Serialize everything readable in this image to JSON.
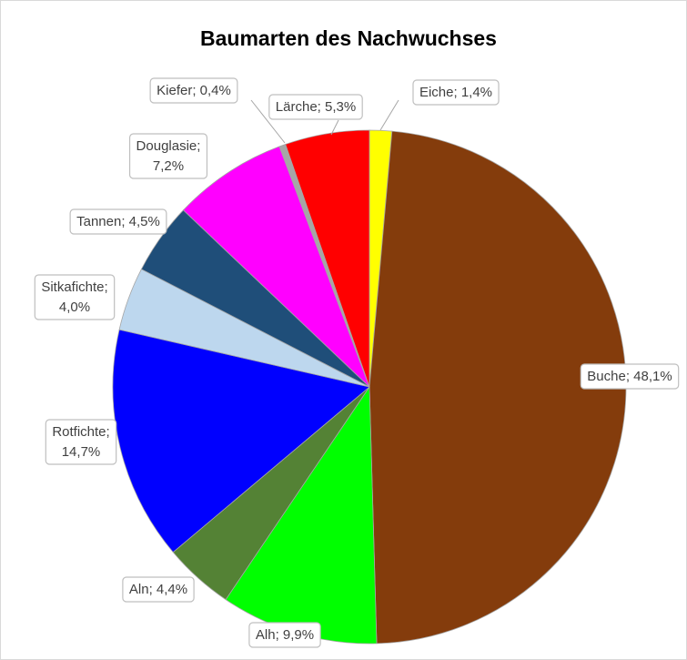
{
  "chart_data": {
    "type": "pie",
    "title": "Baumarten des Nachwuchses",
    "labels": [
      "Eiche; 1,4%",
      "Buche; 48,1%",
      "Alh; 9,9%",
      "Aln; 4,4%",
      "Rotfichte; 14,7%",
      "Sitkafichte; 4,0%",
      "Tannen; 4,5%",
      "Douglasie; 7,2%",
      "Kiefer; 0,4%",
      "Lärche; 5,3%"
    ],
    "values": [
      1.4,
      48.1,
      9.9,
      4.4,
      14.7,
      4.0,
      4.5,
      7.2,
      0.4,
      5.3
    ],
    "colors": [
      "#ffff00",
      "#843c0c",
      "#00ff00",
      "#548235",
      "#0000ff",
      "#bdd7ee",
      "#1f4e79",
      "#ff00ff",
      "#a6a6a6",
      "#ff0000"
    ]
  }
}
